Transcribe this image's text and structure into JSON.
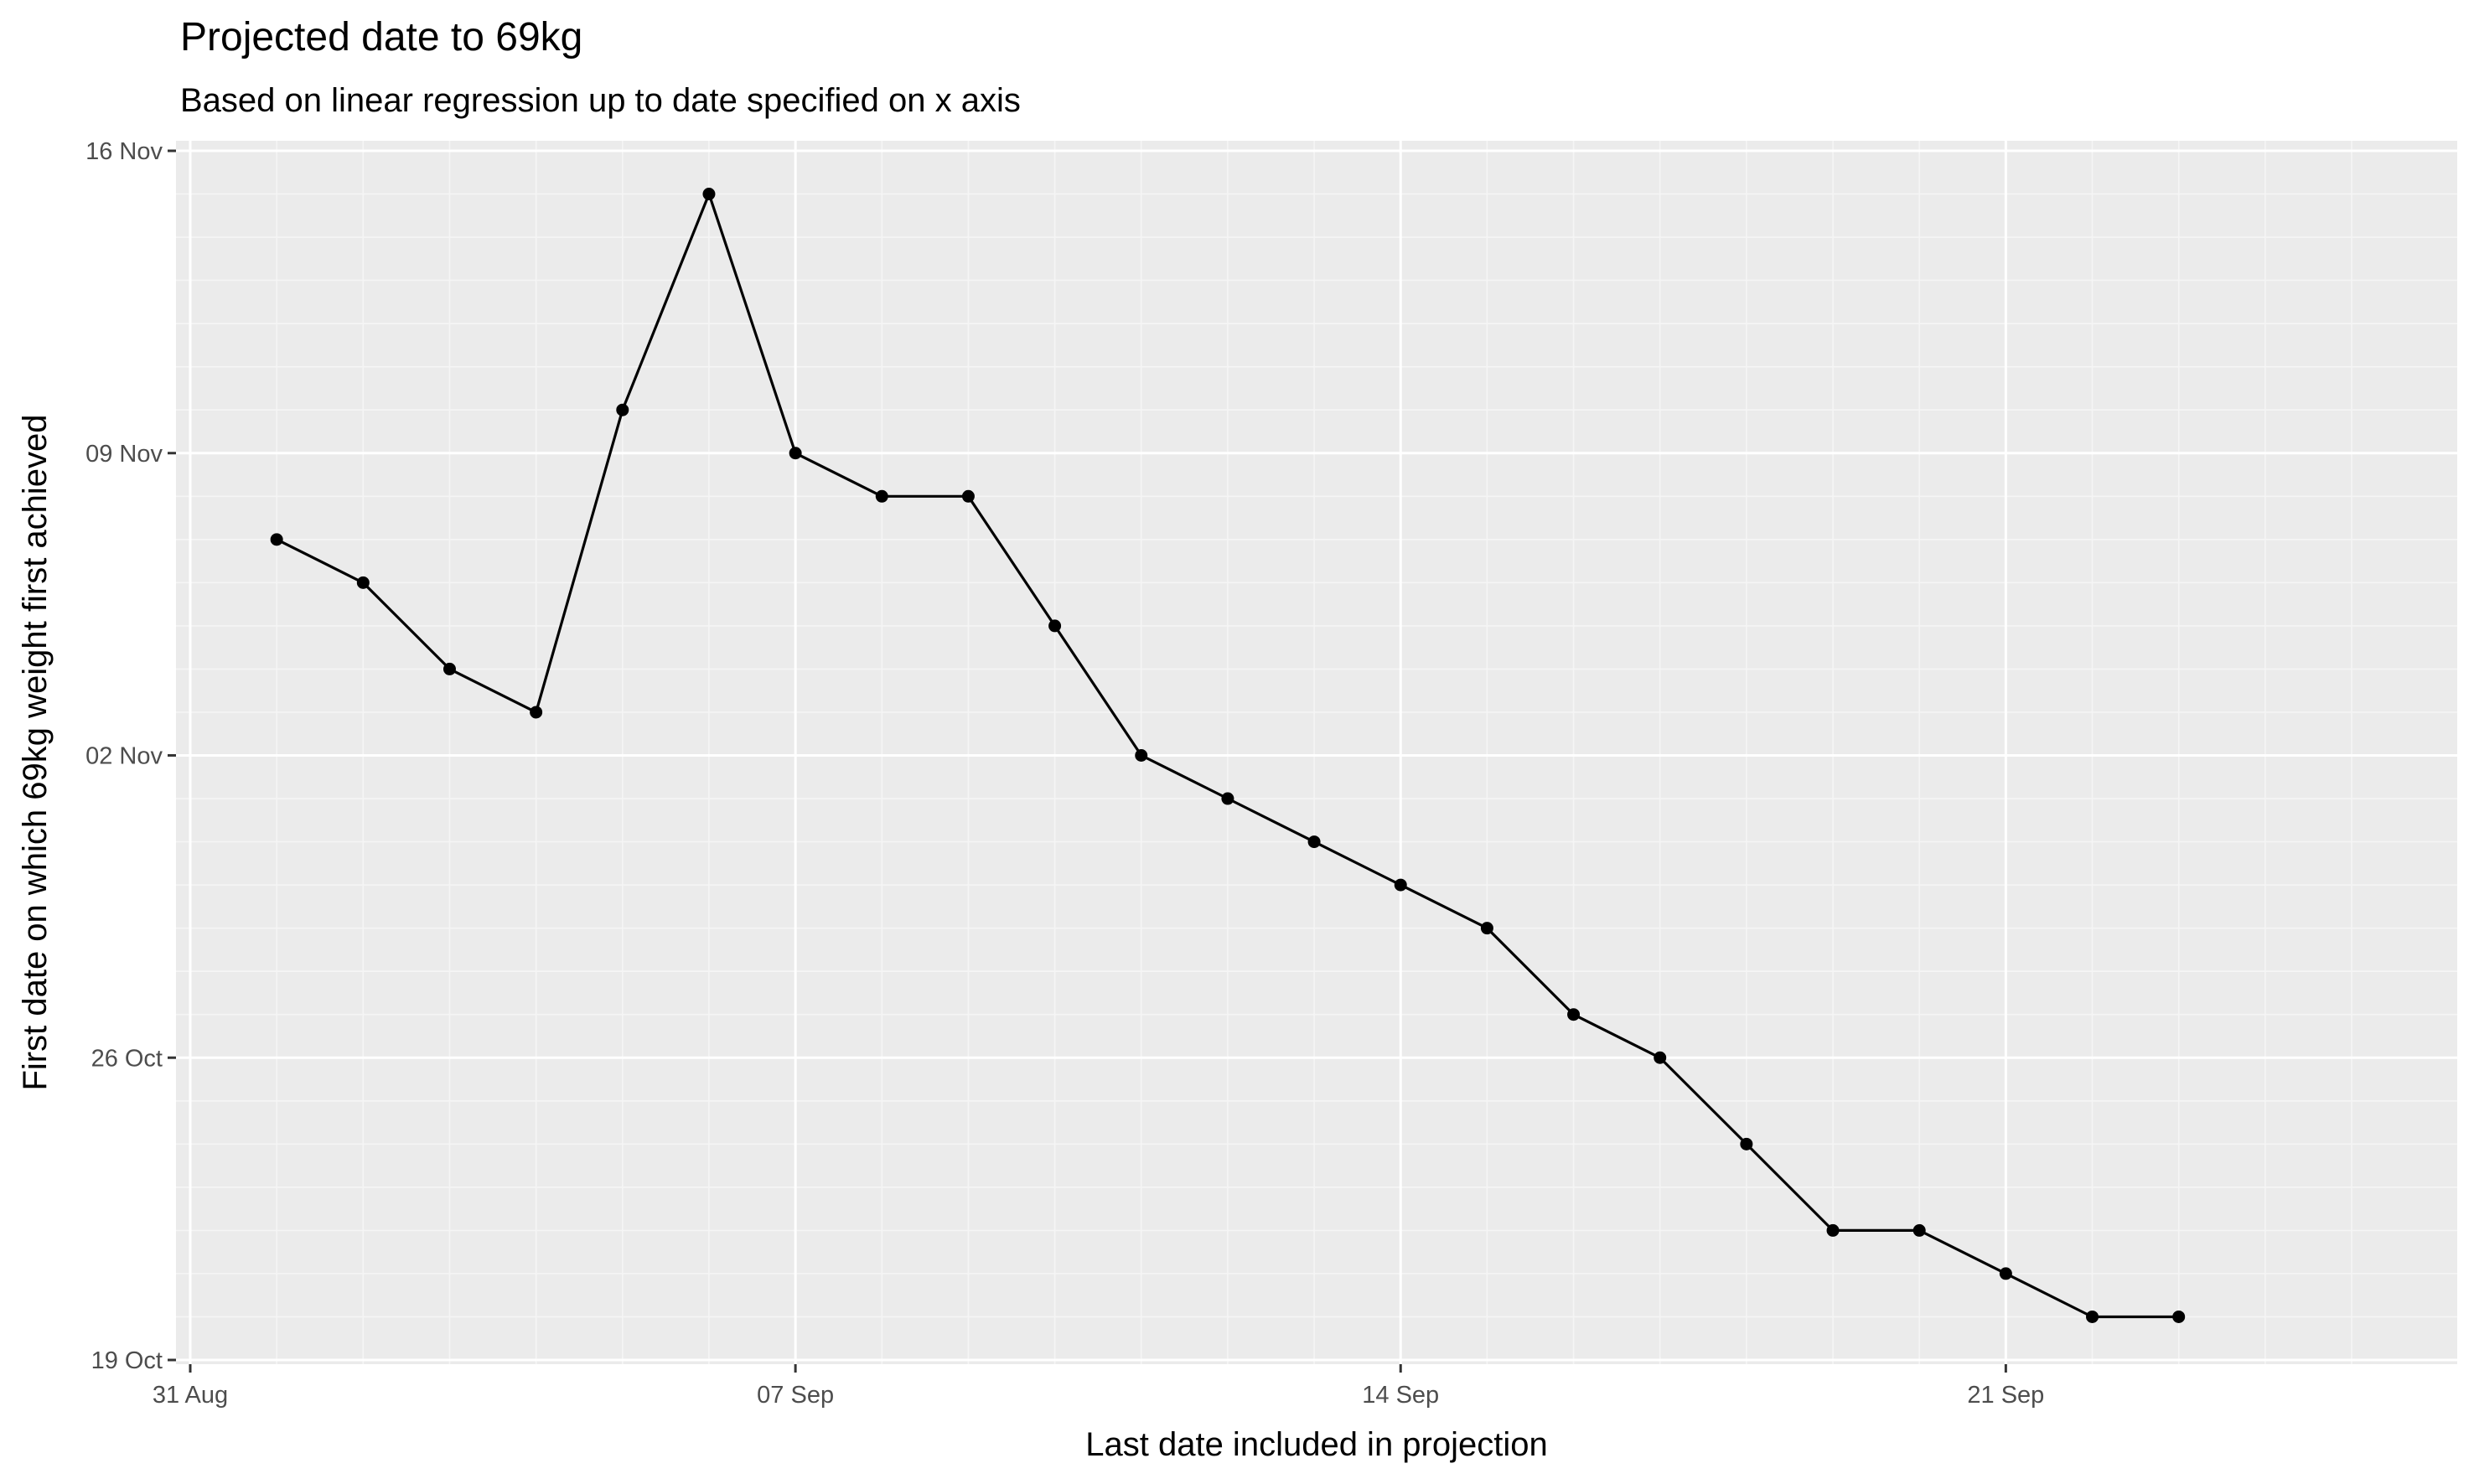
{
  "chart_data": {
    "type": "line",
    "title": "Projected date to 69kg",
    "subtitle": "Based on linear regression up to date specified on x axis",
    "xlabel": "Last date included in projection",
    "ylabel": "First date on which 69kg weight first achieved",
    "x_ticks": [
      "31 Aug",
      "07 Sep",
      "14 Sep",
      "21 Sep"
    ],
    "y_ticks": [
      "19 Oct",
      "26 Oct",
      "02 Nov",
      "09 Nov",
      "16 Nov"
    ],
    "xlim": [
      "2020-08-31",
      "2020-09-25"
    ],
    "ylim": [
      "2020-10-19",
      "2020-11-16"
    ],
    "grid": true,
    "series": [
      {
        "points": [
          {
            "x": "2020-09-01",
            "y": "2020-11-07"
          },
          {
            "x": "2020-09-02",
            "y": "2020-11-06"
          },
          {
            "x": "2020-09-03",
            "y": "2020-11-04"
          },
          {
            "x": "2020-09-04",
            "y": "2020-11-03"
          },
          {
            "x": "2020-09-05",
            "y": "2020-11-10"
          },
          {
            "x": "2020-09-06",
            "y": "2020-11-15"
          },
          {
            "x": "2020-09-07",
            "y": "2020-11-09"
          },
          {
            "x": "2020-09-08",
            "y": "2020-11-08"
          },
          {
            "x": "2020-09-09",
            "y": "2020-11-08"
          },
          {
            "x": "2020-09-10",
            "y": "2020-11-05"
          },
          {
            "x": "2020-09-11",
            "y": "2020-11-02"
          },
          {
            "x": "2020-09-12",
            "y": "2020-11-01"
          },
          {
            "x": "2020-09-13",
            "y": "2020-10-31"
          },
          {
            "x": "2020-09-14",
            "y": "2020-10-30"
          },
          {
            "x": "2020-09-15",
            "y": "2020-10-29"
          },
          {
            "x": "2020-09-16",
            "y": "2020-10-27"
          },
          {
            "x": "2020-09-17",
            "y": "2020-10-26"
          },
          {
            "x": "2020-09-18",
            "y": "2020-10-24"
          },
          {
            "x": "2020-09-19",
            "y": "2020-10-22"
          },
          {
            "x": "2020-09-20",
            "y": "2020-10-22"
          },
          {
            "x": "2020-09-21",
            "y": "2020-10-21"
          },
          {
            "x": "2020-09-22",
            "y": "2020-10-20"
          },
          {
            "x": "2020-09-23",
            "y": "2020-10-20"
          }
        ]
      }
    ],
    "colors": {
      "panel_background": "#ebebeb",
      "grid_major": "#ffffff",
      "grid_minor": "#f5f5f5",
      "line": "#000000",
      "point": "#000000",
      "tick_label": "#4d4d4d",
      "tick_mark": "#333333"
    }
  }
}
